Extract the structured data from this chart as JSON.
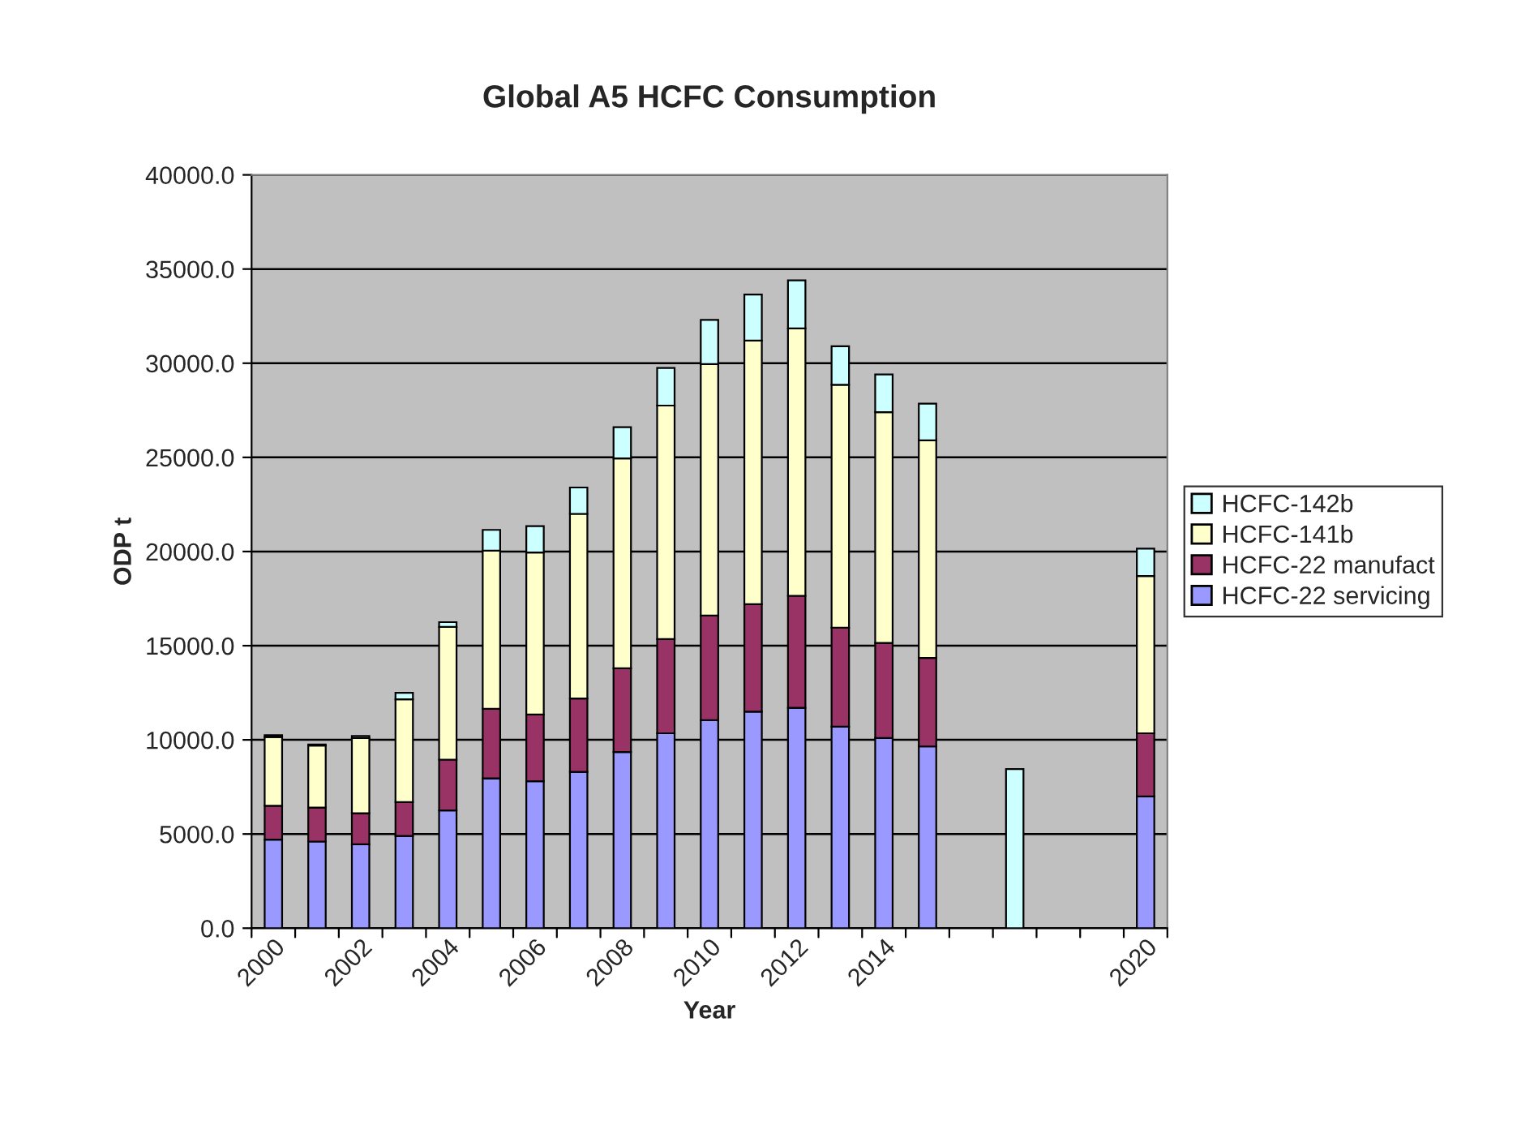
{
  "chart_data": {
    "type": "bar",
    "title": "Global A5 HCFC Consumption",
    "xlabel": "Year",
    "ylabel": "ODP t",
    "categories": [
      "2000",
      null,
      "2002",
      null,
      "2004",
      null,
      "2006",
      null,
      "2008",
      null,
      "2010",
      null,
      "2012",
      null,
      "2014",
      null,
      null,
      null,
      null,
      null,
      "2020"
    ],
    "stacked": true,
    "series": [
      {
        "name": "HCFC-22 servicing",
        "color": "#9999ff",
        "values": [
          4700,
          4600,
          4450,
          4900,
          6250,
          7950,
          7800,
          8300,
          9350,
          10350,
          11050,
          11500,
          11700,
          10700,
          10100,
          9650,
          null,
          null,
          null,
          null,
          7000
        ]
      },
      {
        "name": "HCFC-22 manufact",
        "color": "#993366",
        "values": [
          1800,
          1800,
          1650,
          1800,
          2700,
          3700,
          3550,
          3900,
          4450,
          5000,
          5550,
          5700,
          5950,
          5250,
          5050,
          4700,
          null,
          null,
          null,
          null,
          3350
        ]
      },
      {
        "name": "HCFC-141b",
        "color": "#ffffcc",
        "values": [
          3650,
          3300,
          4000,
          5450,
          7050,
          8400,
          8600,
          9800,
          11150,
          12400,
          13350,
          14000,
          14200,
          12900,
          12250,
          11550,
          null,
          null,
          null,
          null,
          8350
        ]
      },
      {
        "name": "HCFC-142b",
        "color": "#ccffff",
        "values": [
          100,
          50,
          100,
          350,
          250,
          1100,
          1400,
          1400,
          1650,
          2000,
          2350,
          2450,
          2550,
          2050,
          2000,
          1950,
          null,
          8450,
          null,
          null,
          1450
        ]
      }
    ],
    "ylim": [
      0,
      40000
    ],
    "yticks": [
      {
        "value": 0,
        "label": "0.0"
      },
      {
        "value": 5000,
        "label": "5000.0"
      },
      {
        "value": 10000,
        "label": "10000.0"
      },
      {
        "value": 15000,
        "label": "15000.0"
      },
      {
        "value": 20000,
        "label": "20000.0"
      },
      {
        "value": 25000,
        "label": "25000.0"
      },
      {
        "value": 30000,
        "label": "30000.0"
      },
      {
        "value": 35000,
        "label": "35000.0"
      },
      {
        "value": 40000,
        "label": "40000.0"
      }
    ],
    "grid": "y",
    "legend": "right"
  }
}
